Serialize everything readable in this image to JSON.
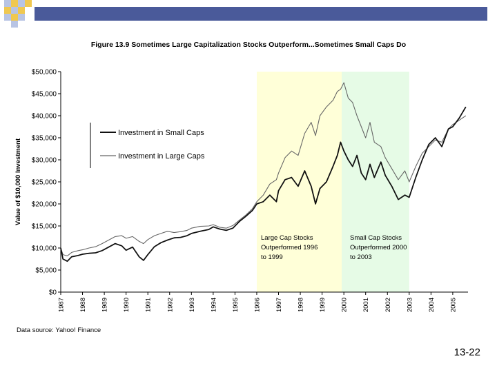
{
  "slide": {
    "page_number": "13-22",
    "colors": {
      "header_bar": "#4a5a9a",
      "checker_a": "#f0c850",
      "checker_b": "#b8c4e4"
    }
  },
  "chart_data": {
    "type": "line",
    "title": "Figure 13.9 Sometimes Large Capitalization Stocks Outperform...Sometimes Small Caps Do",
    "ylabel": "Value of $10,000 Investment",
    "xlabel": "",
    "ylim": [
      0,
      50000
    ],
    "xlim": [
      1987,
      2005.7
    ],
    "y_ticks": [
      "$0",
      "$5,000",
      "$10,000",
      "$15,000",
      "$20,000",
      "$25,000",
      "$30,000",
      "$35,000",
      "$40,000",
      "$45,000",
      "$50,000"
    ],
    "y_tick_values": [
      0,
      5000,
      10000,
      15000,
      20000,
      25000,
      30000,
      35000,
      40000,
      45000,
      50000
    ],
    "x_ticks": [
      "1987",
      "1988",
      "1989",
      "1990",
      "1991",
      "1992",
      "1993",
      "1994",
      "1995",
      "1996",
      "1997",
      "1998",
      "1999",
      "2000",
      "2001",
      "2002",
      "2003",
      "2004",
      "2005"
    ],
    "grid": false,
    "legend": {
      "placement": "top-left",
      "entries": [
        "Investment in Small Caps",
        "Investment in Large Caps"
      ]
    },
    "shaded_regions": [
      {
        "start": 1996,
        "end": 1999.9,
        "color": "#ffffd8",
        "label_lines": [
          "Large Cap Stocks",
          "Outperformed 1996",
          "to 1999"
        ]
      },
      {
        "start": 1999.9,
        "end": 2003,
        "color": "#e6fbe6",
        "label_lines": [
          "Small Cap Stocks",
          "Outperformed 2000",
          "to 2003"
        ]
      }
    ],
    "series": [
      {
        "name": "Investment in Small Caps",
        "color": "#111111",
        "x": [
          1987.0,
          1987.1,
          1987.3,
          1987.5,
          1987.8,
          1988.0,
          1988.3,
          1988.6,
          1988.9,
          1989.2,
          1989.5,
          1989.8,
          1990.0,
          1990.3,
          1990.6,
          1990.8,
          1991.0,
          1991.3,
          1991.6,
          1991.9,
          1992.2,
          1992.5,
          1992.8,
          1993.0,
          1993.4,
          1993.8,
          1994.0,
          1994.3,
          1994.6,
          1994.9,
          1995.2,
          1995.5,
          1995.8,
          1996.0,
          1996.3,
          1996.6,
          1996.9,
          1997.0,
          1997.3,
          1997.6,
          1997.9,
          1998.2,
          1998.5,
          1998.7,
          1998.9,
          1999.2,
          1999.5,
          1999.7,
          1999.85,
          2000.0,
          2000.2,
          2000.4,
          2000.6,
          2000.8,
          2001.0,
          2001.2,
          2001.4,
          2001.7,
          2001.9,
          2002.2,
          2002.5,
          2002.8,
          2003.0,
          2003.3,
          2003.6,
          2003.9,
          2004.2,
          2004.5,
          2004.8,
          2005.0,
          2005.3,
          2005.6
        ],
        "y": [
          10000,
          7500,
          7000,
          8000,
          8300,
          8600,
          8800,
          8900,
          9400,
          10200,
          11000,
          10500,
          9500,
          10200,
          8000,
          7200,
          8500,
          10300,
          11200,
          11800,
          12300,
          12400,
          12800,
          13300,
          13800,
          14200,
          14800,
          14300,
          14000,
          14500,
          16000,
          17200,
          18500,
          20000,
          20500,
          22000,
          20500,
          23000,
          25500,
          26000,
          24000,
          27500,
          24000,
          20000,
          23500,
          25000,
          28500,
          31000,
          34000,
          32000,
          30000,
          28500,
          31000,
          27000,
          25500,
          29000,
          26000,
          29500,
          26500,
          24000,
          21000,
          22000,
          21500,
          26000,
          30000,
          33500,
          35000,
          33000,
          37000,
          37500,
          39500,
          42000
        ]
      },
      {
        "name": "Investment in Large Caps",
        "color": "#666666",
        "x": [
          1987.0,
          1987.1,
          1987.3,
          1987.5,
          1987.8,
          1988.0,
          1988.3,
          1988.6,
          1988.9,
          1989.2,
          1989.5,
          1989.8,
          1990.0,
          1990.3,
          1990.6,
          1990.8,
          1991.0,
          1991.3,
          1991.6,
          1991.9,
          1992.2,
          1992.5,
          1992.8,
          1993.0,
          1993.4,
          1993.8,
          1994.0,
          1994.3,
          1994.6,
          1994.9,
          1995.2,
          1995.5,
          1995.8,
          1996.0,
          1996.3,
          1996.6,
          1996.9,
          1997.0,
          1997.3,
          1997.6,
          1997.9,
          1998.2,
          1998.5,
          1998.7,
          1998.9,
          1999.2,
          1999.5,
          1999.7,
          1999.85,
          2000.0,
          2000.2,
          2000.4,
          2000.6,
          2000.8,
          2001.0,
          2001.2,
          2001.4,
          2001.7,
          2001.9,
          2002.2,
          2002.5,
          2002.8,
          2003.0,
          2003.3,
          2003.6,
          2003.9,
          2004.2,
          2004.5,
          2004.8,
          2005.0,
          2005.3,
          2005.6
        ],
        "y": [
          10000,
          8500,
          8200,
          9000,
          9400,
          9600,
          10000,
          10300,
          11000,
          11800,
          12600,
          12800,
          12200,
          12600,
          11500,
          11000,
          11900,
          12800,
          13300,
          13800,
          13500,
          13700,
          14000,
          14500,
          14900,
          15000,
          15300,
          14700,
          14500,
          15100,
          16300,
          17500,
          18900,
          20500,
          22000,
          24500,
          25500,
          27000,
          30500,
          32000,
          31000,
          36000,
          38500,
          35500,
          40000,
          42000,
          43500,
          45500,
          46000,
          47500,
          44000,
          43000,
          40000,
          37500,
          35000,
          38500,
          34000,
          33000,
          30500,
          28000,
          25500,
          27500,
          25000,
          28500,
          31500,
          33000,
          34500,
          34000,
          37000,
          38000,
          39000,
          40000
        ]
      }
    ]
  }
}
